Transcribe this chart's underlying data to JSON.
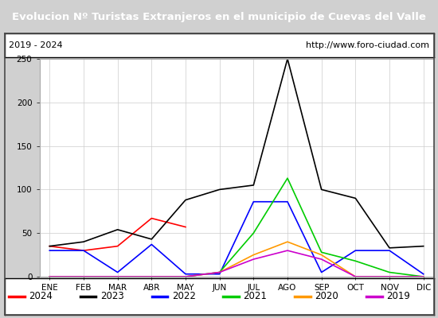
{
  "title": "Evolucion Nº Turistas Extranjeros en el municipio de Cuevas del Valle",
  "subtitle_left": "2019 - 2024",
  "subtitle_right": "http://www.foro-ciudad.com",
  "title_bg": "#3a6abf",
  "title_color": "#ffffff",
  "months": [
    "ENE",
    "FEB",
    "MAR",
    "ABR",
    "MAY",
    "JUN",
    "JUL",
    "AGO",
    "SEP",
    "OCT",
    "NOV",
    "DIC"
  ],
  "ylim": [
    0,
    250
  ],
  "yticks": [
    0,
    50,
    100,
    150,
    200,
    250
  ],
  "series": {
    "2024": {
      "color": "#ff0000",
      "values": [
        35,
        30,
        35,
        67,
        57,
        null,
        null,
        null,
        null,
        null,
        null,
        null
      ]
    },
    "2023": {
      "color": "#000000",
      "values": [
        35,
        40,
        54,
        43,
        88,
        100,
        105,
        250,
        100,
        90,
        33,
        35
      ]
    },
    "2022": {
      "color": "#0000ff",
      "values": [
        30,
        30,
        5,
        37,
        3,
        3,
        86,
        86,
        5,
        30,
        30,
        3
      ]
    },
    "2021": {
      "color": "#00cc00",
      "values": [
        0,
        0,
        0,
        0,
        0,
        5,
        50,
        113,
        28,
        18,
        5,
        0
      ]
    },
    "2020": {
      "color": "#ff9900",
      "values": [
        0,
        0,
        0,
        0,
        0,
        5,
        25,
        40,
        25,
        0,
        0,
        0
      ]
    },
    "2019": {
      "color": "#cc00cc",
      "values": [
        0,
        0,
        0,
        0,
        0,
        5,
        20,
        30,
        20,
        0,
        0,
        0
      ]
    }
  },
  "legend_order": [
    "2024",
    "2023",
    "2022",
    "2021",
    "2020",
    "2019"
  ],
  "plot_bg": "#e8e8e8",
  "chart_bg": "#ffffff",
  "grid_color": "#cccccc",
  "outer_bg": "#d0d0d0"
}
